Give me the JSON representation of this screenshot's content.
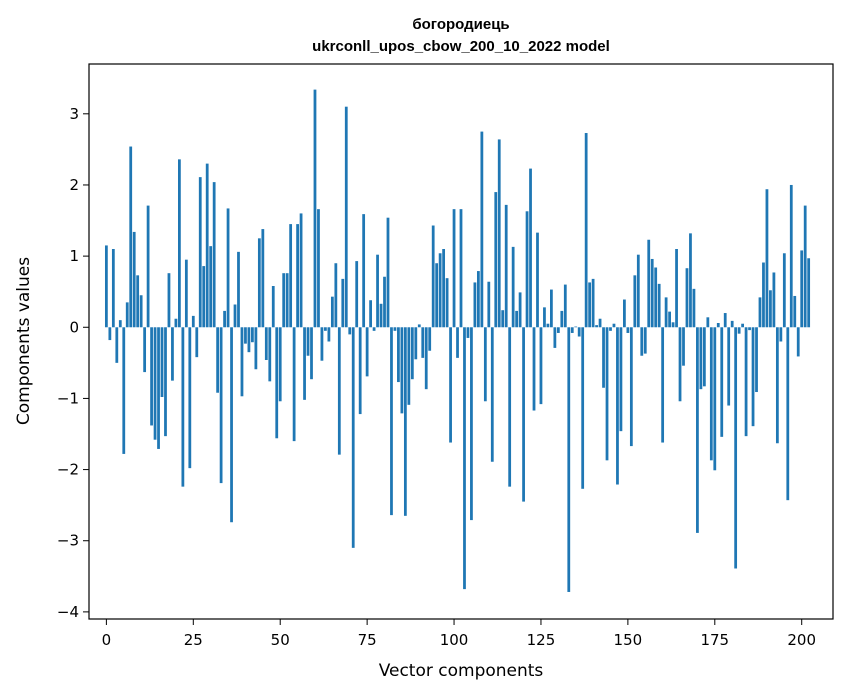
{
  "chart_data": {
    "type": "bar",
    "title_line1": "богородиець",
    "title_line2": "ukrconll_upos_cbow_200_10_2022 model",
    "xlabel": "Vector components",
    "ylabel": "Components values",
    "xlim": [
      -5,
      209
    ],
    "ylim": [
      -4.1,
      3.7
    ],
    "xticks": [
      0,
      25,
      50,
      75,
      100,
      125,
      150,
      175,
      200
    ],
    "xtick_labels": [
      "0",
      "25",
      "50",
      "75",
      "100",
      "125",
      "150",
      "175",
      "200"
    ],
    "yticks": [
      -4,
      -3,
      -2,
      -1,
      0,
      1,
      2,
      3
    ],
    "ytick_labels": [
      "−4",
      "−3",
      "−2",
      "−1",
      "0",
      "1",
      "2",
      "3"
    ],
    "color": "#1f77b4",
    "values": [
      1.15,
      -0.18,
      1.1,
      -0.5,
      0.1,
      -1.78,
      0.35,
      2.54,
      1.34,
      0.73,
      0.45,
      -0.63,
      1.71,
      -1.38,
      -1.58,
      -1.71,
      -0.98,
      -1.53,
      0.76,
      -0.75,
      0.12,
      2.36,
      -2.24,
      0.95,
      -1.98,
      0.16,
      -0.42,
      2.11,
      0.86,
      2.3,
      1.14,
      2.04,
      -0.92,
      -2.19,
      0.23,
      1.67,
      -2.74,
      0.32,
      1.06,
      -0.97,
      -0.23,
      -0.35,
      -0.21,
      -0.59,
      1.25,
      1.38,
      -0.46,
      -0.76,
      0.58,
      -1.56,
      -1.04,
      0.76,
      0.76,
      1.45,
      -1.6,
      1.45,
      1.6,
      -1.02,
      -0.4,
      -0.73,
      3.34,
      1.66,
      -0.47,
      -0.05,
      -0.2,
      0.43,
      0.9,
      -1.79,
      0.68,
      3.1,
      -0.1,
      -3.1,
      0.93,
      -1.22,
      1.59,
      -0.69,
      0.38,
      -0.05,
      1.02,
      0.33,
      0.71,
      1.54,
      -2.64,
      -0.05,
      -0.77,
      -1.21,
      -2.65,
      -1.09,
      -0.73,
      -0.45,
      0.04,
      -0.43,
      -0.87,
      -0.33,
      1.43,
      0.9,
      1.04,
      1.1,
      0.69,
      -1.62,
      1.66,
      -0.43,
      1.66,
      -3.68,
      -0.15,
      -2.71,
      0.63,
      0.79,
      2.75,
      -1.04,
      0.64,
      -1.89,
      1.9,
      2.64,
      0.24,
      1.72,
      -2.24,
      1.13,
      0.23,
      0.49,
      -2.45,
      1.63,
      2.23,
      -1.17,
      1.33,
      -1.08,
      0.28,
      0.05,
      0.53,
      -0.29,
      -0.08,
      0.23,
      0.6,
      -3.72,
      -0.08,
      0.01,
      -0.13,
      -2.27,
      2.73,
      0.63,
      0.68,
      0.03,
      0.12,
      -0.85,
      -1.87,
      -0.05,
      0.05,
      -2.21,
      -1.46,
      0.39,
      -0.08,
      -1.67,
      0.73,
      1.02,
      -0.4,
      -0.37,
      1.23,
      0.96,
      0.84,
      0.61,
      -1.62,
      0.42,
      0.22,
      0.07,
      1.1,
      -1.04,
      -0.54,
      0.83,
      1.32,
      0.54,
      -2.89,
      -0.87,
      -0.83,
      0.14,
      -1.87,
      -2.01,
      0.06,
      -1.54,
      0.2,
      -1.1,
      0.09,
      -3.39,
      -0.09,
      0.05,
      -1.53,
      -0.04,
      -1.39,
      -0.91,
      0.42,
      0.91,
      1.94,
      0.52,
      0.77,
      -1.63,
      -0.2,
      1.04,
      -2.43,
      2.0,
      0.44,
      -0.41,
      1.08,
      1.71,
      0.97
    ]
  }
}
